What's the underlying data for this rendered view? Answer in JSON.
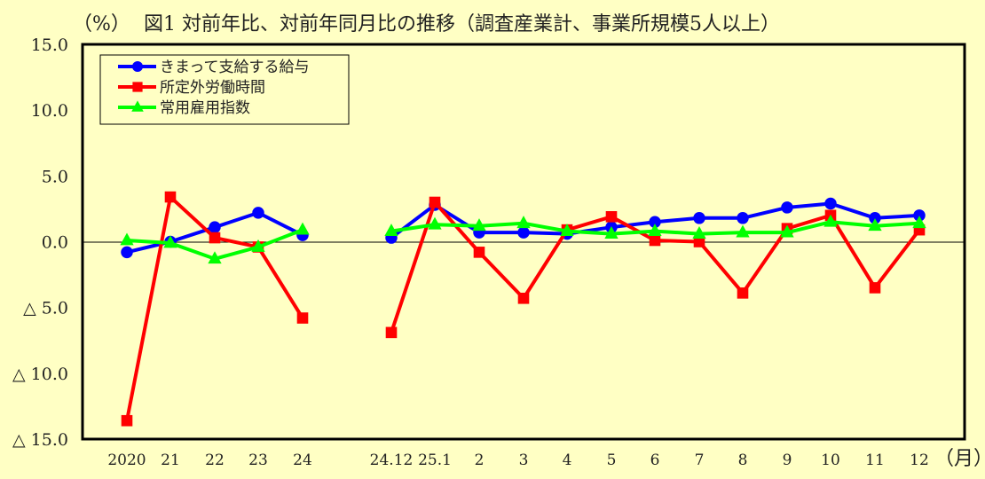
{
  "chart_data": {
    "type": "line",
    "title": "図1  対前年比、対前年同月比の推移（調査産業計、事業所規模5人以上）",
    "ylabel": "（%）",
    "xlabel": "（月）",
    "ylim": [
      -15,
      15
    ],
    "yticks": [
      15,
      10,
      5,
      0,
      -5,
      -10,
      -15
    ],
    "ytick_labels": [
      "15.0",
      "10.0",
      "5.0",
      "0.0",
      "△ 5.0",
      "△ 10.0",
      "△ 15.0"
    ],
    "grid": false,
    "zero_line": true,
    "legend_position": "upper-left",
    "categories": [
      "2020",
      "21",
      "22",
      "23",
      "24",
      "24.12",
      "25.1",
      "2",
      "3",
      "4",
      "5",
      "6",
      "7",
      "8",
      "9",
      "10",
      "11",
      "12"
    ],
    "category_gap_after_index": 4,
    "series": [
      {
        "name": "きまって支給する給与",
        "color": "#0000ff",
        "marker": "circle",
        "values": [
          -0.8,
          0.0,
          1.1,
          2.2,
          0.5,
          0.3,
          2.8,
          0.7,
          0.7,
          0.6,
          1.1,
          1.5,
          1.8,
          1.8,
          2.6,
          2.9,
          1.8,
          2.0
        ]
      },
      {
        "name": "所定外労働時間",
        "color": "#ff0000",
        "marker": "square",
        "values": [
          -13.6,
          3.4,
          0.3,
          -0.4,
          -5.8,
          -6.9,
          3.0,
          -0.8,
          -4.3,
          0.9,
          1.9,
          0.1,
          0.0,
          -3.9,
          1.0,
          2.0,
          -3.5,
          0.9
        ]
      },
      {
        "name": "常用雇用指数",
        "color": "#00ff00",
        "marker": "triangle",
        "values": [
          0.1,
          -0.1,
          -1.3,
          -0.4,
          0.9,
          0.8,
          1.3,
          1.2,
          1.4,
          0.8,
          0.6,
          0.8,
          0.6,
          0.7,
          0.7,
          1.5,
          1.2,
          1.4
        ]
      }
    ]
  },
  "colors": {
    "background": "#ffffc4",
    "axis": "#000000"
  }
}
